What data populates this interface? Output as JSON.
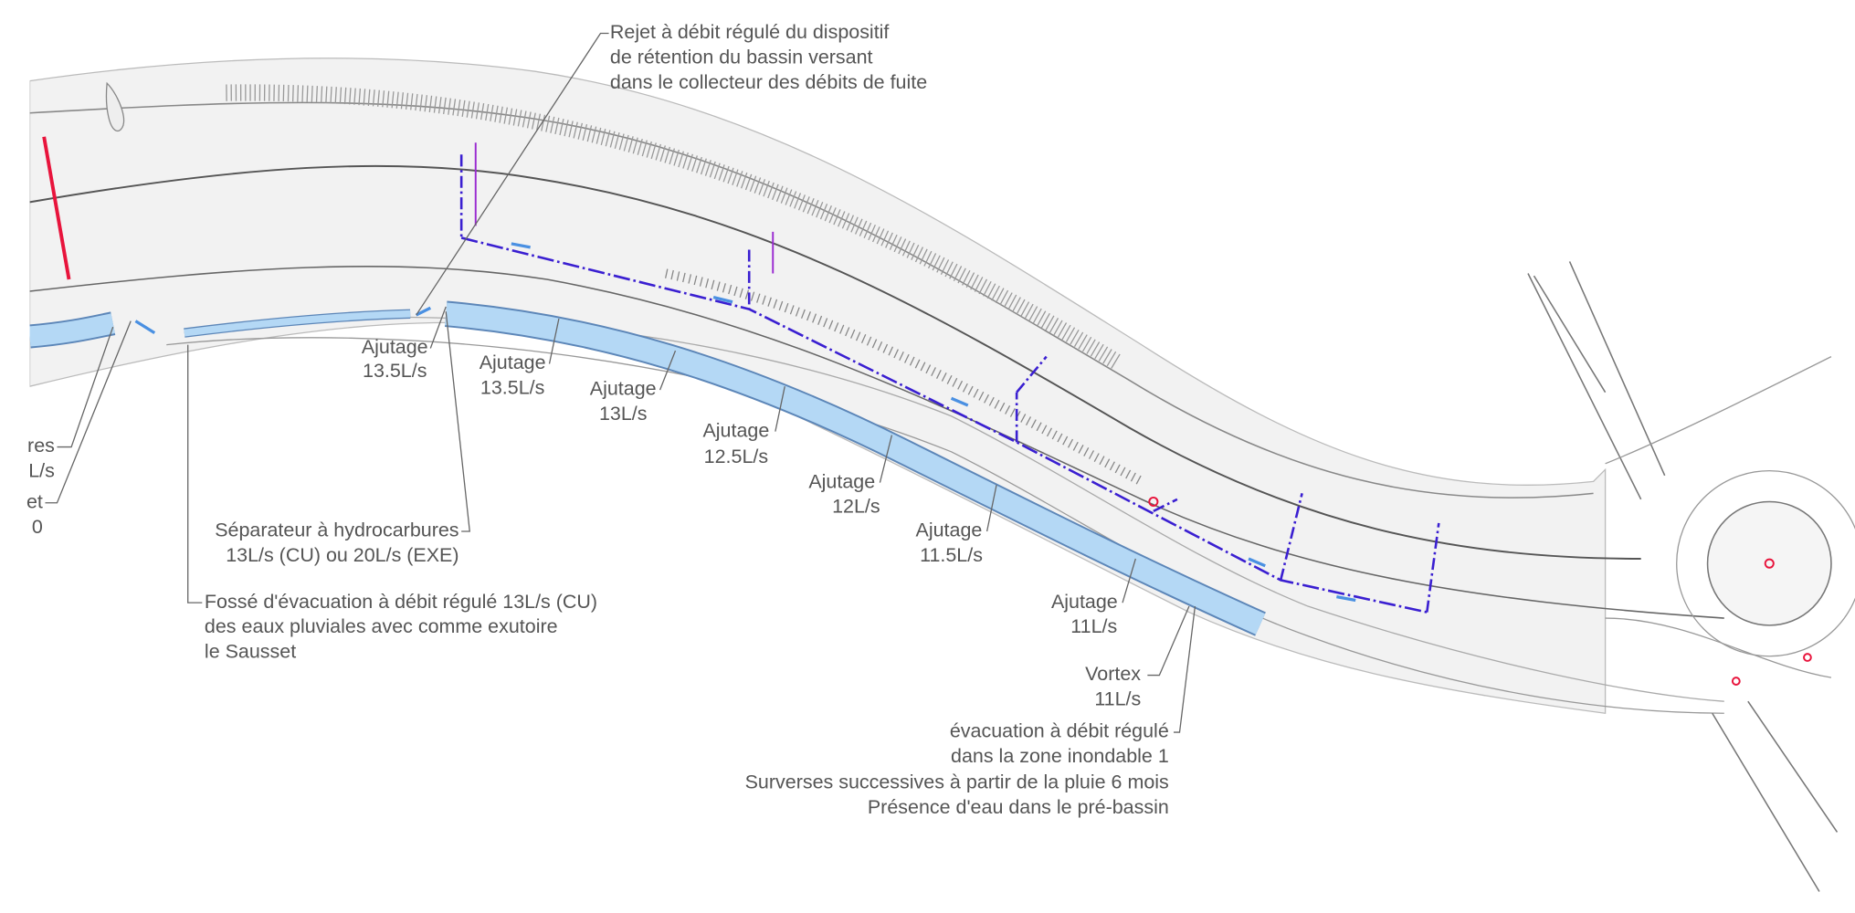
{
  "annotations": [
    {
      "lines": [
        "Rejet à débit régulé du dispositif",
        "de rétention du bassin versant",
        "dans le collecteur des débits de fuite"
      ]
    },
    {
      "lines": [
        "Ajutage",
        "13.5L/s"
      ]
    },
    {
      "lines": [
        "Ajutage",
        "13.5L/s"
      ]
    },
    {
      "lines": [
        "Ajutage",
        "13L/s"
      ]
    },
    {
      "lines": [
        "Ajutage",
        "12.5L/s"
      ]
    },
    {
      "lines": [
        "Ajutage",
        "12L/s"
      ]
    },
    {
      "lines": [
        "Ajutage",
        "11.5L/s"
      ]
    },
    {
      "lines": [
        "Ajutage",
        "11L/s"
      ]
    },
    {
      "lines": [
        "Vortex",
        "11L/s"
      ]
    },
    {
      "lines": [
        "évacuation à débit régulé",
        "dans la zone inondable 1",
        "Surverses successives à partir de la pluie 6 mois",
        "Présence d'eau dans le pré-bassin"
      ]
    },
    {
      "lines": [
        "Séparateur à hydrocarbures",
        "13L/s (CU) ou 20L/s (EXE)"
      ]
    },
    {
      "lines": [
        "Fossé d'évacuation à débit régulé 13L/s (CU)",
        "des eaux pluviales avec comme exutoire",
        "le Sausset"
      ]
    },
    {
      "lines": [
        "res",
        "L/s"
      ]
    },
    {
      "lines": [
        "et",
        "0"
      ]
    }
  ]
}
